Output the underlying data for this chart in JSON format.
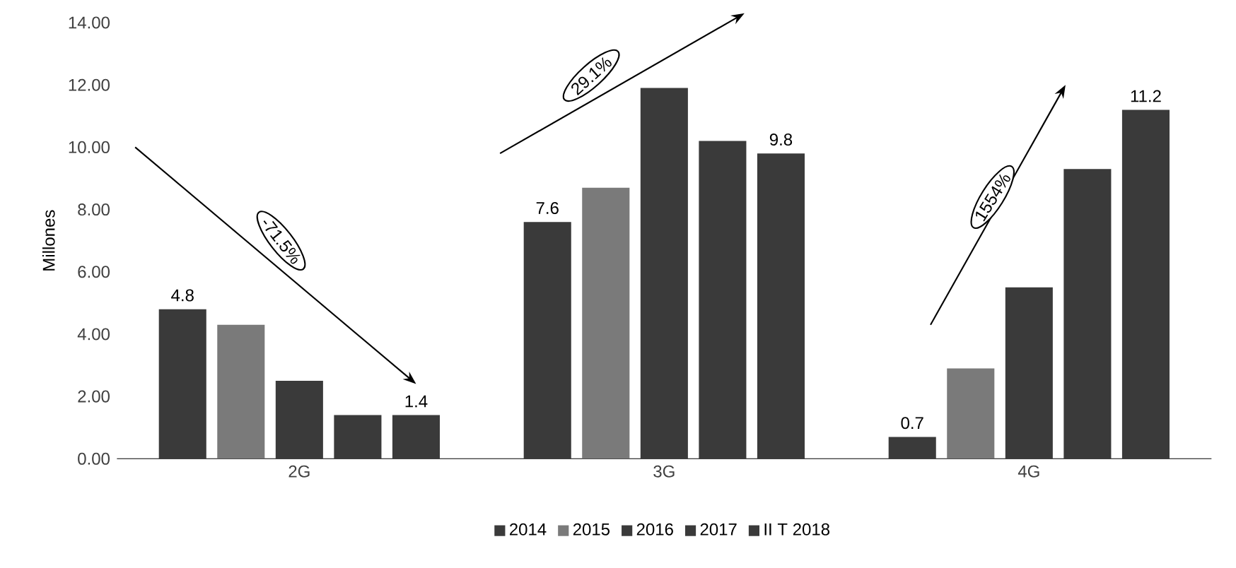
{
  "chart_data": {
    "type": "bar",
    "ylabel": "Millones",
    "categories": [
      "2G",
      "3G",
      "4G"
    ],
    "series": [
      {
        "name": "2014",
        "color": "#3a3a3a",
        "values": [
          4.8,
          7.6,
          0.7
        ],
        "value_labels": [
          "4.8",
          "7.6",
          "0.7"
        ]
      },
      {
        "name": "2015",
        "color": "#7a7a7a",
        "values": [
          4.3,
          8.7,
          2.9
        ]
      },
      {
        "name": "2016",
        "color": "#3a3a3a",
        "values": [
          2.5,
          11.9,
          5.5
        ]
      },
      {
        "name": "2017",
        "color": "#3a3a3a",
        "values": [
          1.4,
          10.2,
          9.3
        ]
      },
      {
        "name": "II T 2018",
        "color": "#3a3a3a",
        "values": [
          1.4,
          9.8,
          11.2
        ],
        "value_labels": [
          "1.4",
          "9.8",
          "11.2"
        ]
      }
    ],
    "ylim": [
      0,
      14
    ],
    "yticks": [
      {
        "value": 0,
        "label": "0.00"
      },
      {
        "value": 2,
        "label": "2.00"
      },
      {
        "value": 4,
        "label": "4.00"
      },
      {
        "value": 6,
        "label": "6.00"
      },
      {
        "value": 8,
        "label": "8.00"
      },
      {
        "value": 10,
        "label": "10.00"
      },
      {
        "value": 12,
        "label": "12.00"
      },
      {
        "value": 14,
        "label": "14.00"
      }
    ],
    "annotations": [
      "-71.5%",
      "29.1%",
      "1554%"
    ],
    "grid": false,
    "legend": "bottom"
  }
}
